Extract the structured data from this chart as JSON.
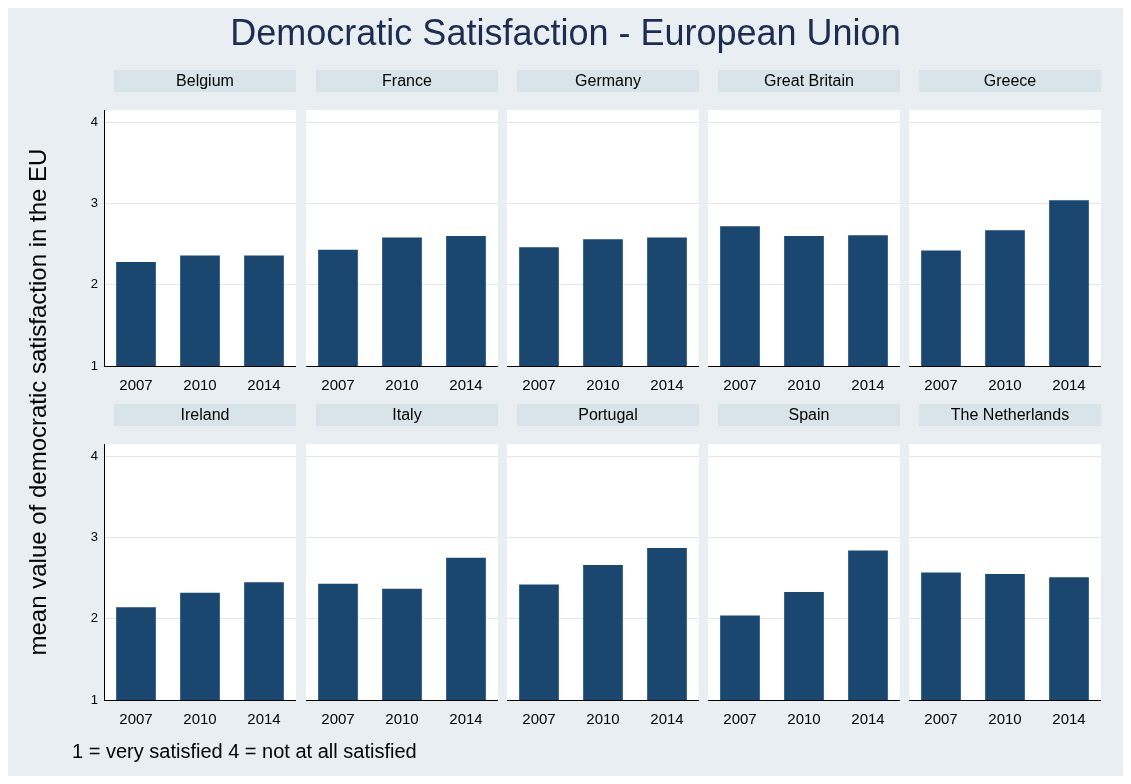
{
  "chart_data": [
    {
      "type": "bar",
      "title": "Belgium",
      "ylabel": "mean value of democratic satisfaction in the EU",
      "annotations": [
        "Democratic Satisfaction - European Union",
        "1 = very satisfied 4 = not at all satisfied"
      ],
      "categories": [
        "2007",
        "2010",
        "2014"
      ],
      "values": [
        2.28,
        2.36,
        2.36
      ],
      "color": "#1a476f",
      "ylim": [
        1,
        4.15
      ],
      "yticks": [
        1,
        2,
        3,
        4
      ],
      "grid": "y"
    },
    {
      "type": "bar",
      "title": "France",
      "categories": [
        "2007",
        "2010",
        "2014"
      ],
      "values": [
        2.43,
        2.58,
        2.6
      ],
      "color": "#1a476f",
      "ylim": [
        1,
        4.15
      ],
      "yticks": [
        1,
        2,
        3,
        4
      ],
      "grid": "y",
      "tick_labels": "x"
    },
    {
      "type": "bar",
      "title": "Germany",
      "categories": [
        "2007",
        "2010",
        "2014"
      ],
      "values": [
        2.46,
        2.56,
        2.58
      ],
      "color": "#1a476f",
      "ylim": [
        1,
        4.15
      ],
      "yticks": [
        1,
        2,
        3,
        4
      ],
      "grid": "y",
      "tick_labels": "x"
    },
    {
      "type": "bar",
      "title": "Great Britain",
      "categories": [
        "2007",
        "2010",
        "2014"
      ],
      "values": [
        2.72,
        2.6,
        2.61
      ],
      "color": "#1a476f",
      "ylim": [
        1,
        4.15
      ],
      "yticks": [
        1,
        2,
        3,
        4
      ],
      "grid": "y",
      "tick_labels": "x"
    },
    {
      "type": "bar",
      "title": "Greece",
      "categories": [
        "2007",
        "2010",
        "2014"
      ],
      "values": [
        2.42,
        2.67,
        3.04
      ],
      "color": "#1a476f",
      "ylim": [
        1,
        4.15
      ],
      "yticks": [
        1,
        2,
        3,
        4
      ],
      "grid": "y",
      "tick_labels": "x"
    },
    {
      "type": "bar",
      "title": "Ireland",
      "categories": [
        "2007",
        "2010",
        "2014"
      ],
      "values": [
        2.14,
        2.32,
        2.45
      ],
      "color": "#1a476f",
      "ylim": [
        1,
        4.15
      ],
      "yticks": [
        1,
        2,
        3,
        4
      ],
      "grid": "y"
    },
    {
      "type": "bar",
      "title": "Italy",
      "categories": [
        "2007",
        "2010",
        "2014"
      ],
      "values": [
        2.43,
        2.37,
        2.75
      ],
      "color": "#1a476f",
      "ylim": [
        1,
        4.15
      ],
      "yticks": [
        1,
        2,
        3,
        4
      ],
      "grid": "y",
      "tick_labels": "x"
    },
    {
      "type": "bar",
      "title": "Portugal",
      "categories": [
        "2007",
        "2010",
        "2014"
      ],
      "values": [
        2.42,
        2.66,
        2.87
      ],
      "color": "#1a476f",
      "ylim": [
        1,
        4.15
      ],
      "yticks": [
        1,
        2,
        3,
        4
      ],
      "grid": "y",
      "tick_labels": "x"
    },
    {
      "type": "bar",
      "title": "Spain",
      "categories": [
        "2007",
        "2010",
        "2014"
      ],
      "values": [
        2.04,
        2.33,
        2.84
      ],
      "color": "#1a476f",
      "ylim": [
        1,
        4.15
      ],
      "yticks": [
        1,
        2,
        3,
        4
      ],
      "grid": "y",
      "tick_labels": "x"
    },
    {
      "type": "bar",
      "title": "The Netherlands",
      "categories": [
        "2007",
        "2010",
        "2014"
      ],
      "values": [
        2.57,
        2.55,
        2.51
      ],
      "color": "#1a476f",
      "ylim": [
        1,
        4.15
      ],
      "yticks": [
        1,
        2,
        3,
        4
      ],
      "grid": "y",
      "tick_labels": "x"
    }
  ]
}
